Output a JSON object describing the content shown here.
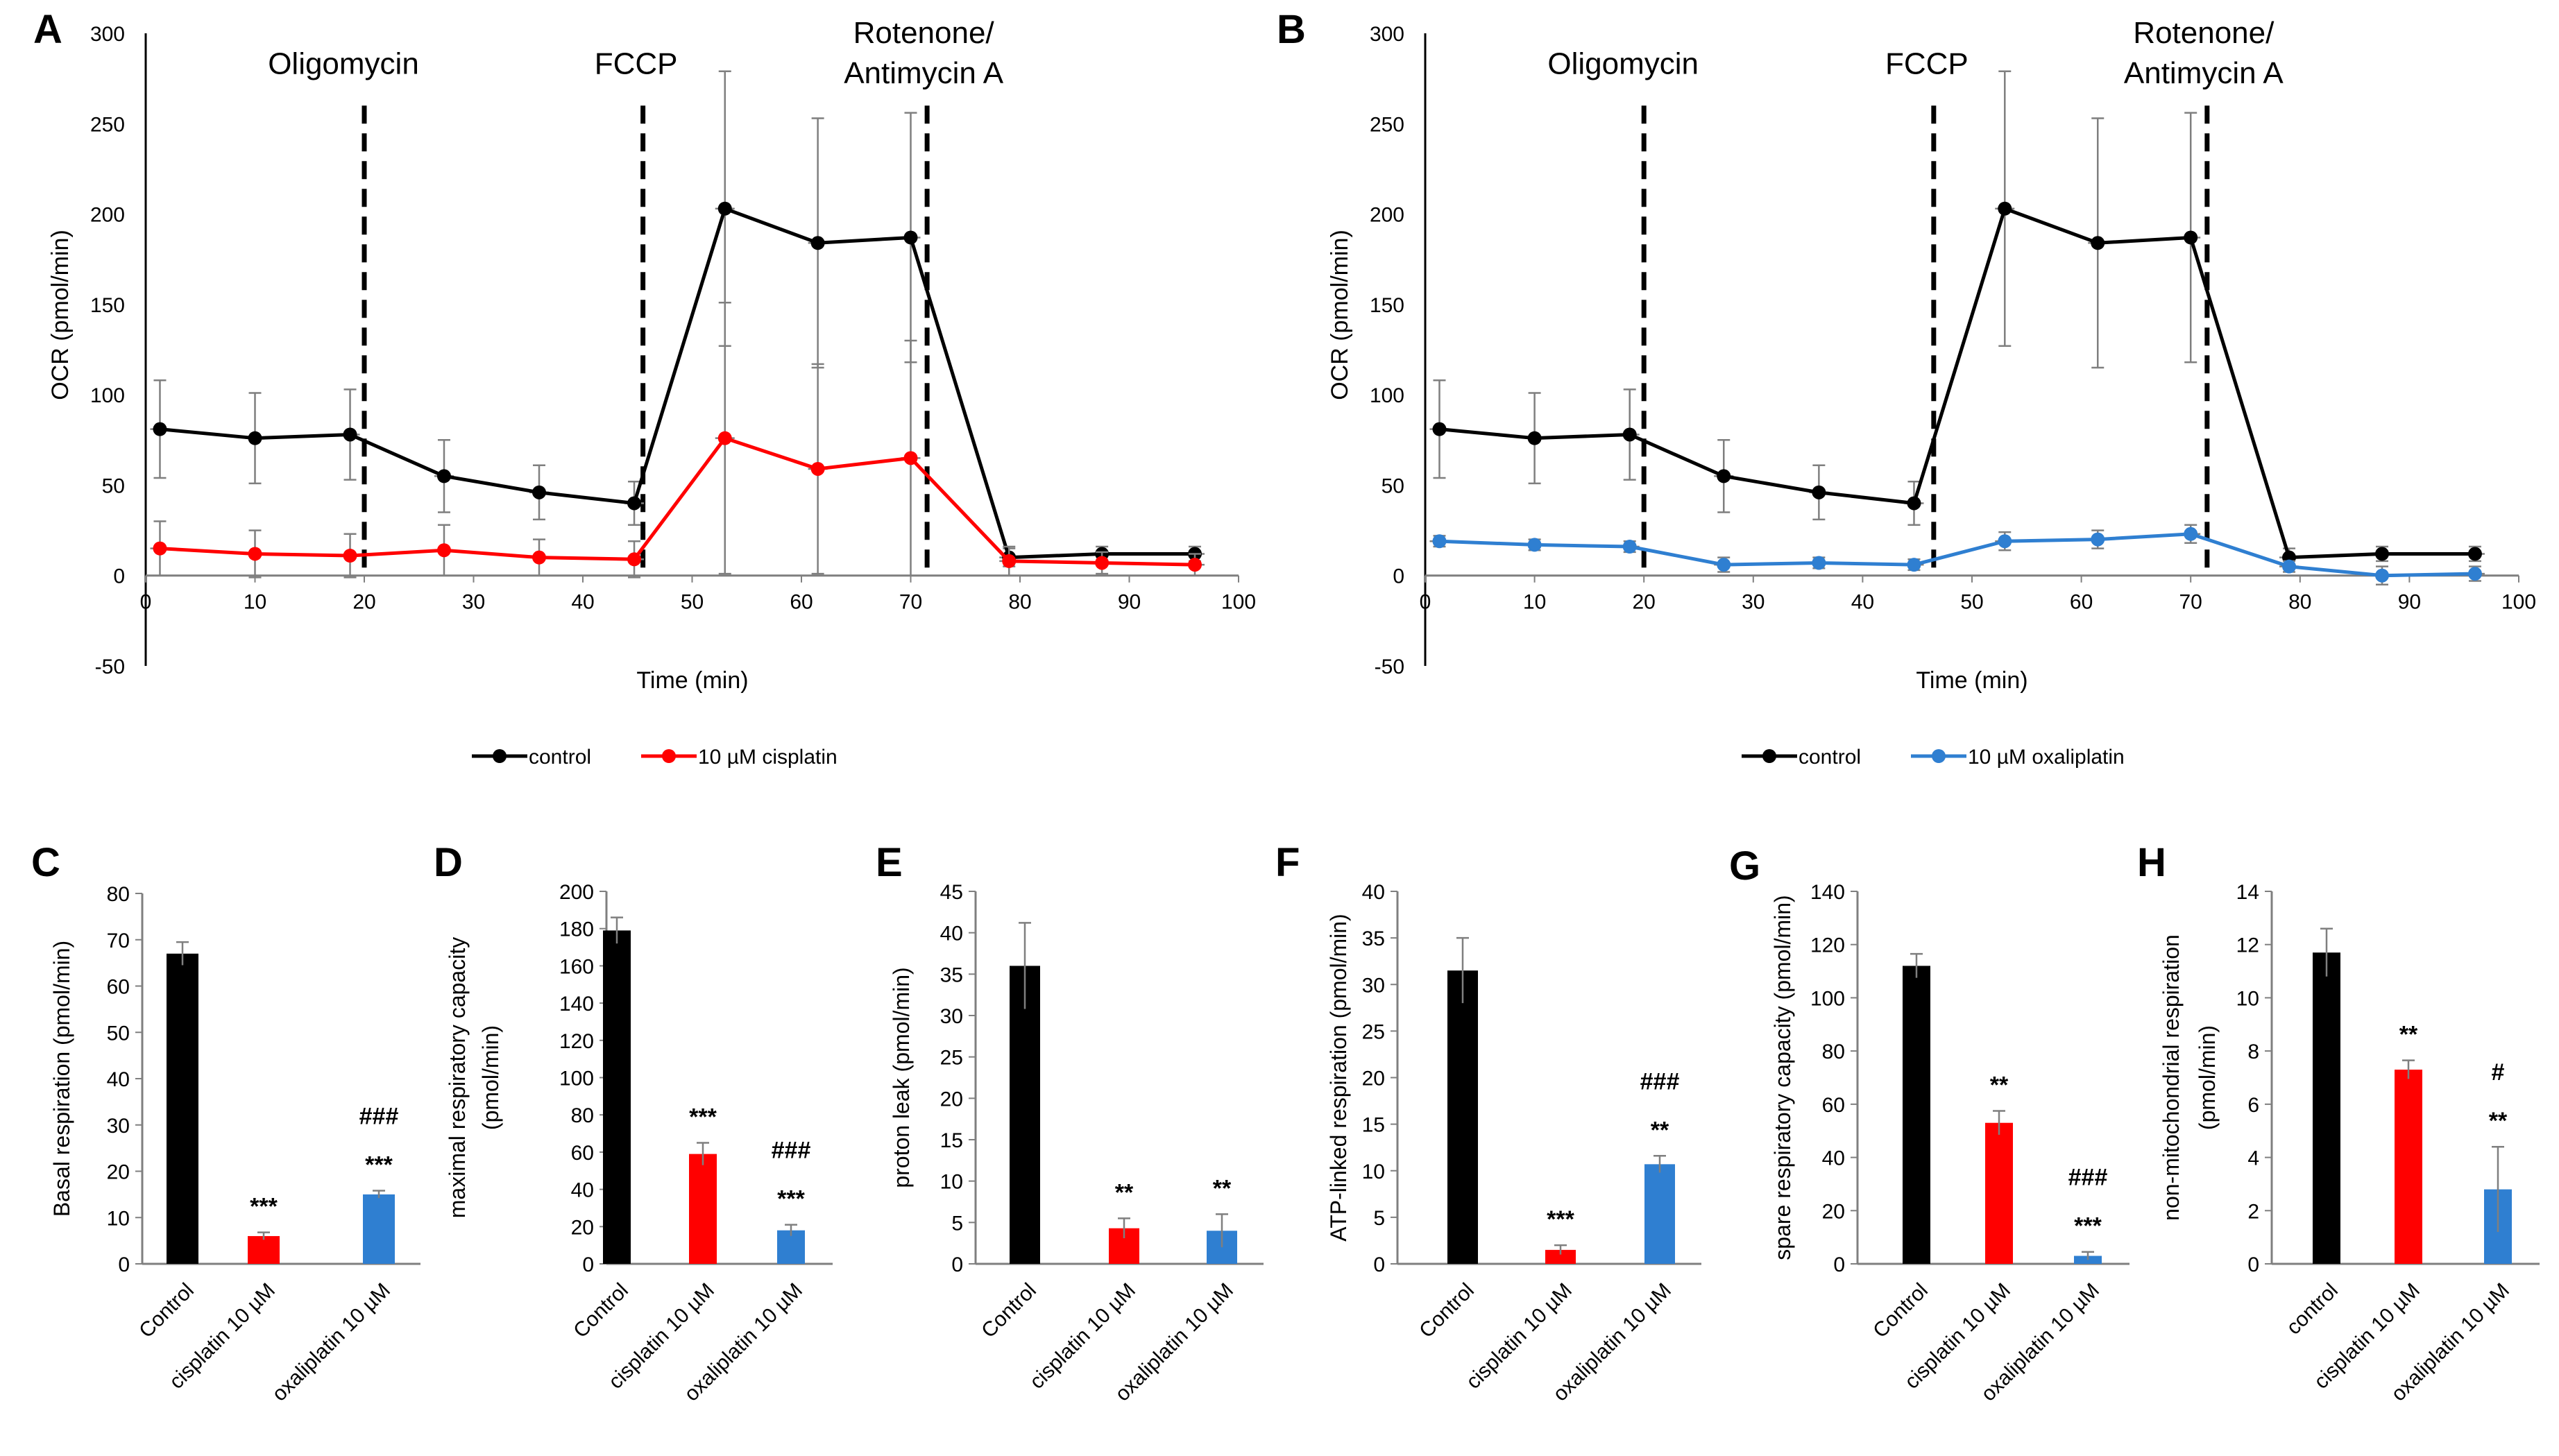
{
  "colors": {
    "control": "#000000",
    "cisplatin": "#ff0000",
    "oxaliplatin": "#2f7fd1",
    "error_bar": "#7f7f7f",
    "axis": "#7f7f7f"
  },
  "chart_data": [
    {
      "id": "A",
      "panel_label": "A",
      "type": "line",
      "xlabel": "Time (min)",
      "ylabel": "OCR (pmol/min)",
      "xlim": [
        0,
        100
      ],
      "ylim": [
        -50,
        300
      ],
      "xticks": [
        "0",
        "10",
        "20",
        "30",
        "40",
        "50",
        "60",
        "70",
        "80",
        "90",
        "100"
      ],
      "yticks": [
        "-50",
        "0",
        "50",
        "100",
        "150",
        "200",
        "250",
        "300"
      ],
      "injections": [
        {
          "label": "Oligomycin",
          "x": 20
        },
        {
          "label": "FCCP",
          "x": 45.5
        },
        {
          "label": "Rotenone/",
          "label2": "Antimycin A",
          "x": 71.5
        }
      ],
      "series": [
        {
          "name": "control",
          "color_key": "control",
          "x": [
            1.3,
            10,
            18.7,
            27.3,
            36,
            44.7,
            53,
            61.5,
            70,
            79,
            87.5,
            96
          ],
          "y": [
            81,
            76,
            78,
            55,
            46,
            40,
            203,
            184,
            187,
            10,
            12,
            12
          ],
          "err": [
            27,
            25,
            25,
            20,
            15,
            12,
            76,
            69,
            69,
            5,
            4,
            4
          ]
        },
        {
          "name": "10 µM cisplatin",
          "color_key": "cisplatin",
          "x": [
            1.3,
            10,
            18.7,
            27.3,
            36,
            44.7,
            53,
            61.5,
            70,
            79,
            87.5,
            96
          ],
          "y": [
            15,
            12,
            11,
            14,
            10,
            9,
            76,
            59,
            65,
            8,
            7,
            6
          ],
          "err": [
            15,
            13,
            12,
            14,
            10,
            10,
            75,
            58,
            65,
            8,
            6,
            6
          ]
        }
      ],
      "legend": [
        "control",
        "10 µM cisplatin"
      ]
    },
    {
      "id": "B",
      "panel_label": "B",
      "type": "line",
      "xlabel": "Time (min)",
      "ylabel": "OCR (pmol/min)",
      "xlim": [
        0,
        100
      ],
      "ylim": [
        -50,
        300
      ],
      "xticks": [
        "0",
        "10",
        "20",
        "30",
        "40",
        "50",
        "60",
        "70",
        "80",
        "90",
        "100"
      ],
      "yticks": [
        "-50",
        "0",
        "50",
        "100",
        "150",
        "200",
        "250",
        "300"
      ],
      "injections": [
        {
          "label": "Oligomycin",
          "x": 20
        },
        {
          "label": "FCCP",
          "x": 46.5
        },
        {
          "label": "Rotenone/",
          "label2": "Antimycin A",
          "x": 71.5
        }
      ],
      "series": [
        {
          "name": "control",
          "color_key": "control",
          "x": [
            1.3,
            10,
            18.7,
            27.3,
            36,
            44.7,
            53,
            61.5,
            70,
            79,
            87.5,
            96
          ],
          "y": [
            81,
            76,
            78,
            55,
            46,
            40,
            203,
            184,
            187,
            10,
            12,
            12
          ],
          "err": [
            27,
            25,
            25,
            20,
            15,
            12,
            76,
            69,
            69,
            5,
            4,
            4
          ]
        },
        {
          "name": "10 µM oxaliplatin",
          "color_key": "oxaliplatin",
          "x": [
            1.3,
            10,
            18.7,
            27.3,
            36,
            44.7,
            53,
            61.5,
            70,
            79,
            87.5,
            96
          ],
          "y": [
            19,
            17,
            16,
            6,
            7,
            6,
            19,
            20,
            23,
            5,
            0,
            1
          ],
          "err": [
            3,
            3,
            3,
            4,
            3,
            3,
            5,
            5,
            5,
            3,
            5,
            4
          ]
        }
      ],
      "legend": [
        "control",
        "10 µM oxaliplatin"
      ]
    },
    {
      "id": "C",
      "panel_label": "C",
      "type": "bar",
      "ylabel": [
        "Basal respiration (pmol/min)"
      ],
      "ylim": [
        0,
        80
      ],
      "yticks": [
        "0",
        "10",
        "20",
        "30",
        "40",
        "50",
        "60",
        "70",
        "80"
      ],
      "categories": [
        "Control",
        "cisplatin 10 µM",
        "oxaliplatin 10 µM"
      ],
      "values": [
        67,
        6,
        15
      ],
      "errors": [
        2.5,
        0.8,
        0.8
      ],
      "stars": [
        "",
        "***",
        "***"
      ],
      "hashes": [
        "",
        "",
        "###"
      ]
    },
    {
      "id": "D",
      "panel_label": "D",
      "type": "bar",
      "ylabel": [
        "maximal respiratory capacity",
        "(pmol/min)"
      ],
      "ylim": [
        0,
        200
      ],
      "yticks": [
        "0",
        "20",
        "40",
        "60",
        "80",
        "100",
        "120",
        "140",
        "160",
        "180",
        "200"
      ],
      "categories": [
        "Control",
        "cisplatin 10 µM",
        "oxaliplatin 10 µM"
      ],
      "values": [
        179,
        59,
        18
      ],
      "errors": [
        7,
        6,
        3
      ],
      "stars": [
        "",
        "***",
        "***"
      ],
      "hashes": [
        "",
        "",
        "###"
      ]
    },
    {
      "id": "E",
      "panel_label": "E",
      "type": "bar",
      "ylabel": [
        "proton leak (pmol/min)"
      ],
      "ylim": [
        0,
        45
      ],
      "yticks": [
        "0",
        "5",
        "10",
        "15",
        "20",
        "25",
        "30",
        "35",
        "40",
        "45"
      ],
      "categories": [
        "Control",
        "cisplatin 10 µM",
        "oxaliplatin 10 µM"
      ],
      "values": [
        36,
        4.3,
        4
      ],
      "errors": [
        5.2,
        1.2,
        2
      ],
      "stars": [
        "",
        "**",
        "**"
      ],
      "hashes": [
        "",
        "",
        ""
      ]
    },
    {
      "id": "F",
      "panel_label": "F",
      "type": "bar",
      "ylabel": [
        "ATP-linked respiration (pmol/min)"
      ],
      "ylim": [
        0,
        40
      ],
      "yticks": [
        "0",
        "5",
        "10",
        "15",
        "20",
        "25",
        "30",
        "35",
        "40"
      ],
      "categories": [
        "Control",
        "cisplatin 10 µM",
        "oxaliplatin 10 µM"
      ],
      "values": [
        31.5,
        1.5,
        10.7
      ],
      "errors": [
        3.5,
        0.5,
        0.9
      ],
      "stars": [
        "",
        "***",
        "**"
      ],
      "hashes": [
        "",
        "",
        "###"
      ]
    },
    {
      "id": "G",
      "panel_label": "G",
      "type": "bar",
      "ylabel": [
        "spare respiratory capacity (pmol/min)"
      ],
      "ylim": [
        0,
        140
      ],
      "yticks": [
        "0",
        "20",
        "40",
        "60",
        "80",
        "100",
        "120",
        "140"
      ],
      "categories": [
        "Control",
        "cisplatin 10 µM",
        "oxaliplatin 10 µM"
      ],
      "values": [
        112,
        53,
        3
      ],
      "errors": [
        4.5,
        4.5,
        1.5
      ],
      "stars": [
        "",
        "**",
        "***"
      ],
      "hashes": [
        "",
        "",
        "###"
      ]
    },
    {
      "id": "H",
      "panel_label": "H",
      "type": "bar",
      "ylabel": [
        "non-mitochondrial respiration",
        "(pmol/min)"
      ],
      "ylim": [
        0,
        14
      ],
      "yticks": [
        "0",
        "2",
        "4",
        "6",
        "8",
        "10",
        "12",
        "14"
      ],
      "categories": [
        "control",
        "cisplatin 10 µM",
        "oxaliplatin 10 µM"
      ],
      "values": [
        11.7,
        7.3,
        2.8
      ],
      "errors": [
        0.9,
        0.35,
        1.6
      ],
      "stars": [
        "",
        "**",
        "**"
      ],
      "hashes": [
        "",
        "",
        "#"
      ]
    }
  ]
}
